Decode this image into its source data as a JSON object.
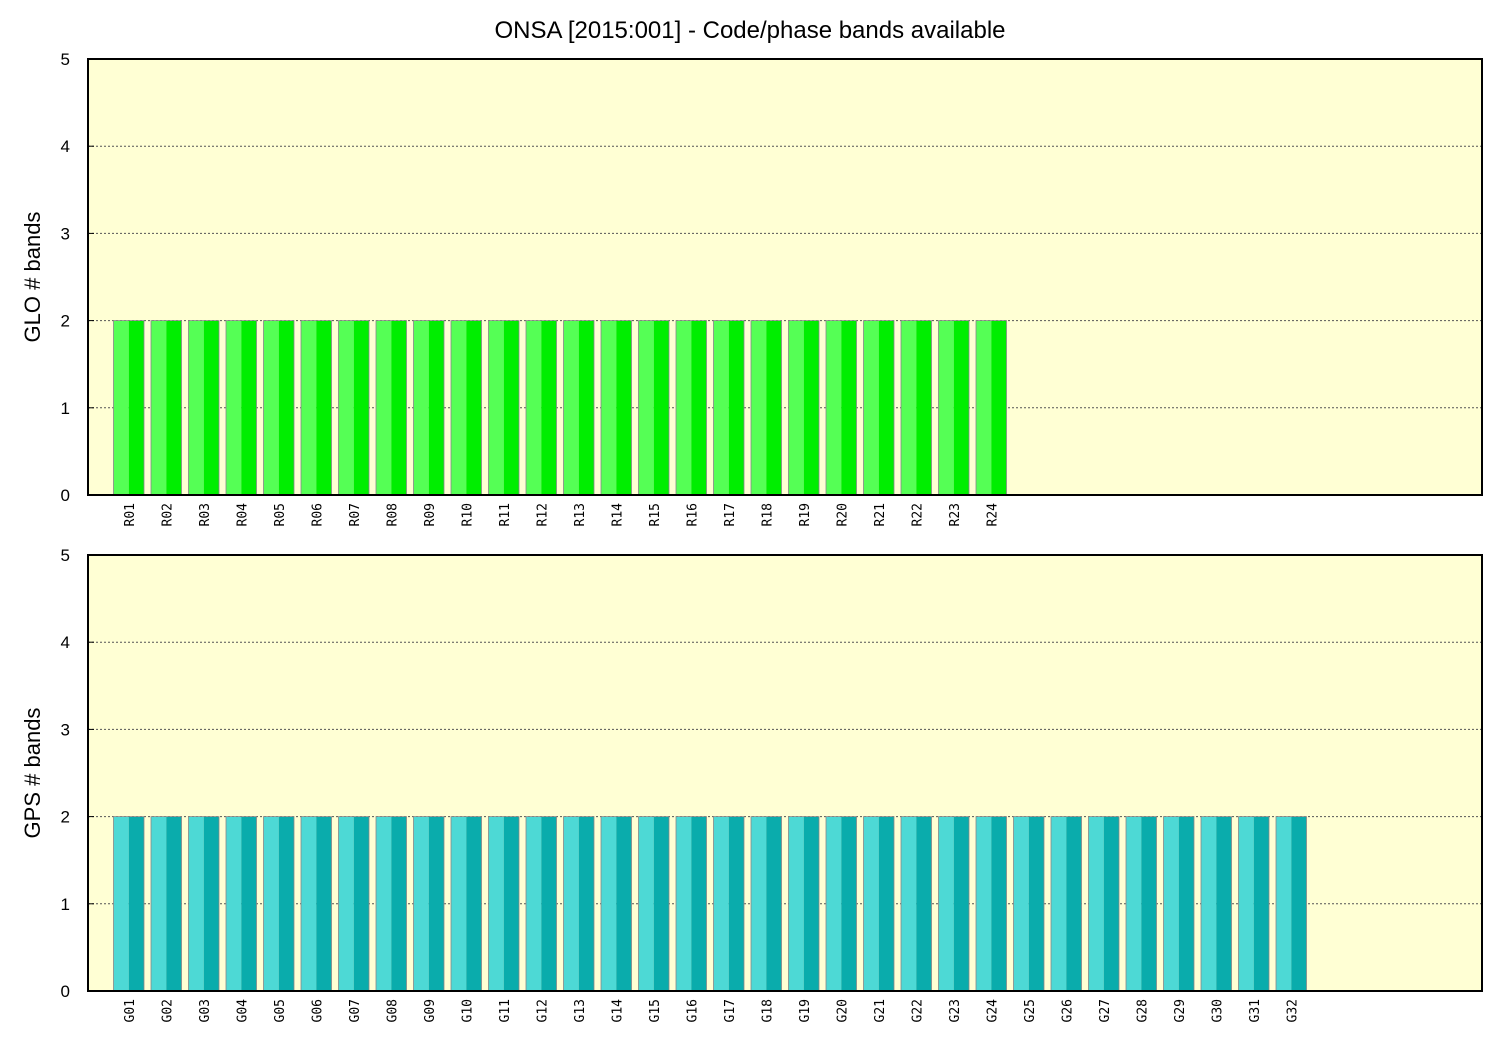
{
  "title": "ONSA [2015:001] - Code/phase bands available",
  "chart_data": [
    {
      "type": "bar",
      "ylabel": "GLO # bands",
      "ylim": [
        0,
        5
      ],
      "yticks": [
        "0",
        "1",
        "2",
        "3",
        "4",
        "5"
      ],
      "grid": true,
      "colors": {
        "light": "#55ff55",
        "dark": "#00ee00",
        "background": "#ffffd4"
      },
      "categories": [
        "R01",
        "R02",
        "R03",
        "R04",
        "R05",
        "R06",
        "R07",
        "R08",
        "R09",
        "R10",
        "R11",
        "R12",
        "R13",
        "R14",
        "R15",
        "R16",
        "R17",
        "R18",
        "R19",
        "R20",
        "R21",
        "R22",
        "R23",
        "R24"
      ],
      "values": [
        2,
        2,
        2,
        2,
        2,
        2,
        2,
        2,
        2,
        2,
        2,
        2,
        2,
        2,
        2,
        2,
        2,
        2,
        2,
        2,
        2,
        2,
        2,
        2
      ],
      "slots": 36
    },
    {
      "type": "bar",
      "ylabel": "GPS # bands",
      "ylim": [
        0,
        5
      ],
      "yticks": [
        "0",
        "1",
        "2",
        "3",
        "4",
        "5"
      ],
      "grid": true,
      "colors": {
        "light": "#4dd9d5",
        "dark": "#0aacac",
        "background": "#ffffd4"
      },
      "categories": [
        "G01",
        "G02",
        "G03",
        "G04",
        "G05",
        "G06",
        "G07",
        "G08",
        "G09",
        "G10",
        "G11",
        "G12",
        "G13",
        "G14",
        "G15",
        "G16",
        "G17",
        "G18",
        "G19",
        "G20",
        "G21",
        "G22",
        "G23",
        "G24",
        "G25",
        "G26",
        "G27",
        "G28",
        "G29",
        "G30",
        "G31",
        "G32"
      ],
      "values": [
        2,
        2,
        2,
        2,
        2,
        2,
        2,
        2,
        2,
        2,
        2,
        2,
        2,
        2,
        2,
        2,
        2,
        2,
        2,
        2,
        2,
        2,
        2,
        2,
        2,
        2,
        2,
        2,
        2,
        2,
        2,
        2
      ],
      "slots": 36
    }
  ]
}
